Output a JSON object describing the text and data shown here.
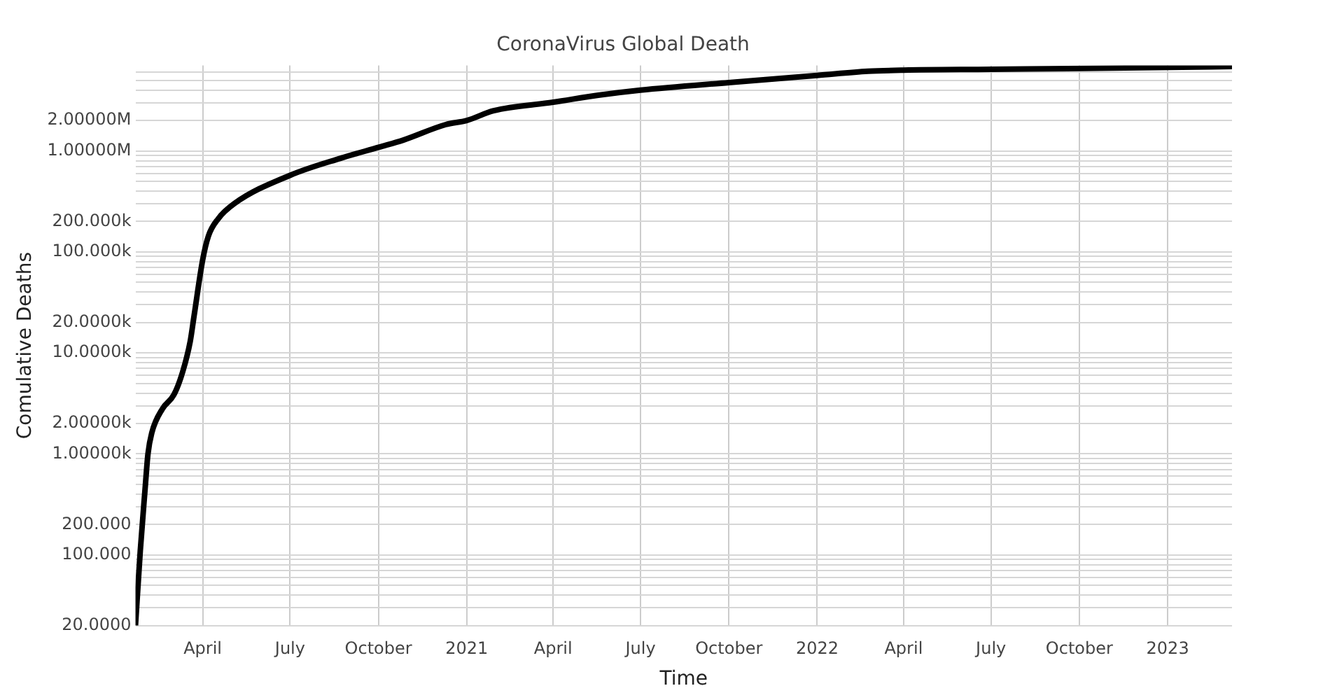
{
  "chart_data": {
    "type": "line",
    "title": "CoronaVirus Global Death",
    "xlabel": "Time",
    "ylabel": "Comulative Deaths",
    "log": "y",
    "grid": true,
    "x": [
      "2020-01-22",
      "2020-01-27",
      "2020-02-01",
      "2020-02-04",
      "2020-02-08",
      "2020-02-19",
      "2020-03-02",
      "2020-03-11",
      "2020-03-19",
      "2020-03-23",
      "2020-04-01",
      "2020-04-07",
      "2020-04-17",
      "2020-05-04",
      "2020-07-01",
      "2020-08-22",
      "2020-10-02",
      "2020-10-27",
      "2020-12-10",
      "2021-01-01",
      "2021-01-29",
      "2021-04-01",
      "2021-05-18",
      "2021-07-01",
      "2021-10-01",
      "2022-01-01",
      "2022-02-23",
      "2022-04-01",
      "2022-07-01",
      "2023-01-01",
      "2023-03-09"
    ],
    "series": [
      {
        "color": "#000000",
        "values": [
          20,
          110,
          450,
          1000,
          1620,
          2790,
          3850,
          6430,
          13000,
          23200,
          83600,
          144000,
          212000,
          301000,
          573000,
          842000,
          1090000,
          1280000,
          1820000,
          2000000,
          2500000,
          3030000,
          3560000,
          4000000,
          4750000,
          5580000,
          6140000,
          6300000,
          6420000,
          6700000,
          6850000
        ]
      }
    ],
    "xlim": [
      "2020-01-22",
      "2023-03-09"
    ],
    "xticks": [
      {
        "value": "2020-04-01",
        "label": "April"
      },
      {
        "value": "2020-07-01",
        "label": "July"
      },
      {
        "value": "2020-10-01",
        "label": "October"
      },
      {
        "value": "2021-01-01",
        "label": "2021"
      },
      {
        "value": "2021-04-01",
        "label": "April"
      },
      {
        "value": "2021-07-01",
        "label": "July"
      },
      {
        "value": "2021-10-01",
        "label": "October"
      },
      {
        "value": "2022-01-01",
        "label": "2022"
      },
      {
        "value": "2022-04-01",
        "label": "April"
      },
      {
        "value": "2022-07-01",
        "label": "July"
      },
      {
        "value": "2022-10-01",
        "label": "October"
      },
      {
        "value": "2023-01-01",
        "label": "2023"
      }
    ],
    "ylim": [
      20,
      7000000
    ],
    "yticks": [
      {
        "value": 20,
        "label": "20.0000"
      },
      {
        "value": 30,
        "label": null
      },
      {
        "value": 40,
        "label": null
      },
      {
        "value": 50,
        "label": null
      },
      {
        "value": 60,
        "label": null
      },
      {
        "value": 70,
        "label": null
      },
      {
        "value": 80,
        "label": null
      },
      {
        "value": 90,
        "label": null
      },
      {
        "value": 100,
        "label": "100.000"
      },
      {
        "value": 200,
        "label": "200.000"
      },
      {
        "value": 300,
        "label": null
      },
      {
        "value": 400,
        "label": null
      },
      {
        "value": 500,
        "label": null
      },
      {
        "value": 600,
        "label": null
      },
      {
        "value": 700,
        "label": null
      },
      {
        "value": 800,
        "label": null
      },
      {
        "value": 900,
        "label": null
      },
      {
        "value": 1000,
        "label": "1.00000k"
      },
      {
        "value": 2000,
        "label": "2.00000k"
      },
      {
        "value": 3000,
        "label": null
      },
      {
        "value": 4000,
        "label": null
      },
      {
        "value": 5000,
        "label": null
      },
      {
        "value": 6000,
        "label": null
      },
      {
        "value": 7000,
        "label": null
      },
      {
        "value": 8000,
        "label": null
      },
      {
        "value": 9000,
        "label": null
      },
      {
        "value": 10000,
        "label": "10.0000k"
      },
      {
        "value": 20000,
        "label": "20.0000k"
      },
      {
        "value": 30000,
        "label": null
      },
      {
        "value": 40000,
        "label": null
      },
      {
        "value": 50000,
        "label": null
      },
      {
        "value": 60000,
        "label": null
      },
      {
        "value": 70000,
        "label": null
      },
      {
        "value": 80000,
        "label": null
      },
      {
        "value": 90000,
        "label": null
      },
      {
        "value": 100000,
        "label": "100.000k"
      },
      {
        "value": 200000,
        "label": "200.000k"
      },
      {
        "value": 300000,
        "label": null
      },
      {
        "value": 400000,
        "label": null
      },
      {
        "value": 500000,
        "label": null
      },
      {
        "value": 600000,
        "label": null
      },
      {
        "value": 700000,
        "label": null
      },
      {
        "value": 800000,
        "label": null
      },
      {
        "value": 900000,
        "label": null
      },
      {
        "value": 1000000,
        "label": "1.00000M"
      },
      {
        "value": 2000000,
        "label": "2.00000M"
      },
      {
        "value": 3000000,
        "label": null
      },
      {
        "value": 4000000,
        "label": null
      },
      {
        "value": 5000000,
        "label": null
      },
      {
        "value": 6000000,
        "label": null
      }
    ]
  }
}
